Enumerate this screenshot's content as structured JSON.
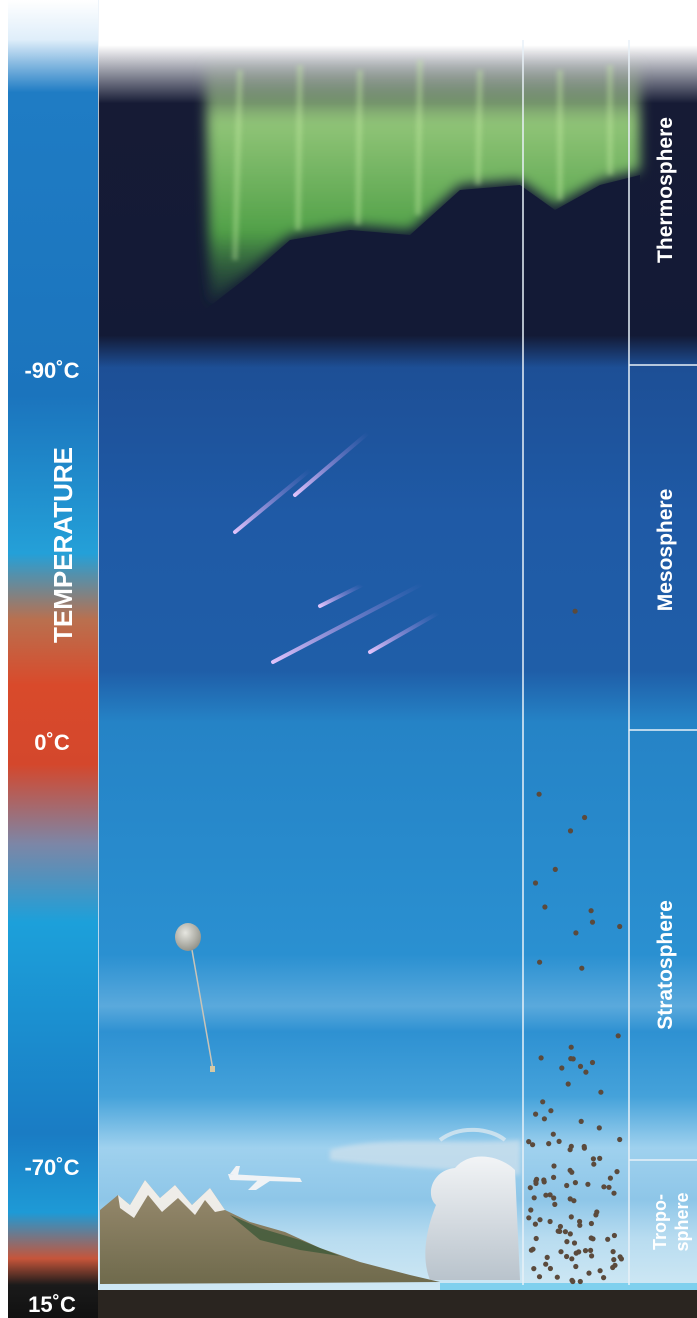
{
  "temperature_scale": {
    "title": "TEMPERATURE",
    "labels": {
      "top": "-90˚C",
      "middle": "0˚C",
      "lower": "-70˚C",
      "ground": "15˚C"
    }
  },
  "layers": {
    "thermosphere": "Thermosphere",
    "mesosphere": "Mesosphere",
    "stratosphere": "Stratosphere",
    "troposphere_line1": "Tropo-",
    "troposphere_line2": "sphere"
  },
  "colors": {
    "night_sky": "#141a33",
    "mesosphere_blue": "#1d5aa6",
    "stratosphere_blue": "#2b8fd0",
    "horizon_light": "#8cc8ea",
    "aurora_green": "#7fd46a",
    "temp_warm": "#d9452b",
    "temp_cool": "#1a8ad0",
    "ground": "#2a2520"
  },
  "icons": {
    "aurora": "aurora-icon",
    "meteors": "meteor-streak-icon",
    "balloon": "weather-balloon-icon",
    "airplane": "airplane-icon",
    "mountains": "mountain-range-icon",
    "cloud": "storm-cloud-icon",
    "particles": "air-molecule-icon"
  }
}
